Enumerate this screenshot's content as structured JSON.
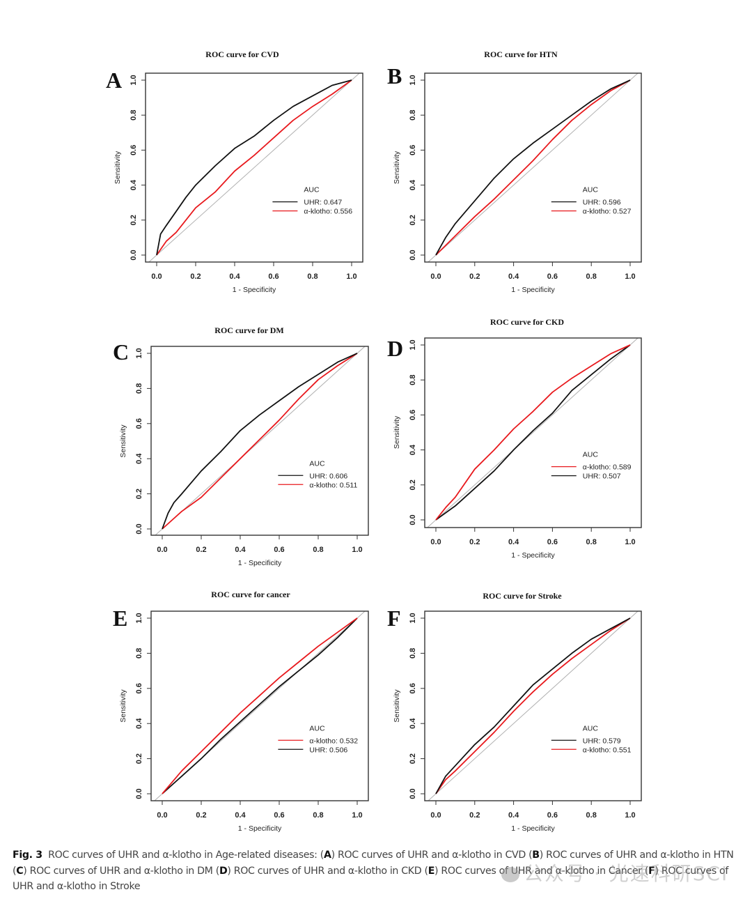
{
  "figure": {
    "caption": {
      "label": "Fig. 3",
      "text": "ROC curves of UHR and α-klotho in Age-related diseases:",
      "parts": [
        {
          "letter": "A",
          "text": "ROC curves of UHR and α-klotho in CVD"
        },
        {
          "letter": "B",
          "text": "ROC curves of UHR and α-klotho in HTN"
        },
        {
          "letter": "C",
          "text": "ROC curves of UHR and α-klotho in DM"
        },
        {
          "letter": "D",
          "text": "ROC curves of UHR and α-klotho in CKD"
        },
        {
          "letter": "E",
          "text": "ROC curves of UHR and α-klotho in Cancer"
        },
        {
          "letter": "F",
          "text": "ROC curves of UHR and α-klotho in Stroke"
        }
      ]
    },
    "watermark": "公众号 · 光速科研SCI"
  },
  "colors": {
    "uhr": "#111111",
    "klotho": "#e8191d",
    "diagonal": "#b0b0b0",
    "frame": "#333333"
  },
  "chart_data": [
    {
      "panel": "A",
      "type": "line",
      "title": "ROC curve for CVD",
      "xlabel": "1 - Specificity",
      "ylabel": "Sensitivity",
      "xlim": [
        0,
        1
      ],
      "ylim": [
        0,
        1
      ],
      "xticks": [
        "0.0",
        "0.2",
        "0.4",
        "0.6",
        "0.8",
        "1.0"
      ],
      "yticks": [
        "0.0",
        "0.2",
        "0.4",
        "0.6",
        "0.8",
        "1.0"
      ],
      "legend": {
        "title": "AUC",
        "position": "bottom-right"
      },
      "diagonal": true,
      "series": [
        {
          "name": "UHR",
          "label": "UHR: 0.647",
          "auc": 0.647,
          "color": "uhr",
          "x": [
            0,
            0.02,
            0.05,
            0.1,
            0.15,
            0.2,
            0.3,
            0.4,
            0.5,
            0.6,
            0.7,
            0.8,
            0.9,
            1.0
          ],
          "y": [
            0,
            0.12,
            0.17,
            0.25,
            0.33,
            0.4,
            0.51,
            0.61,
            0.68,
            0.77,
            0.85,
            0.91,
            0.97,
            1.0
          ]
        },
        {
          "name": "α-klotho",
          "label": "α-klotho: 0.556",
          "auc": 0.556,
          "color": "klotho",
          "x": [
            0,
            0.05,
            0.1,
            0.2,
            0.3,
            0.4,
            0.5,
            0.6,
            0.7,
            0.8,
            0.9,
            1.0
          ],
          "y": [
            0,
            0.08,
            0.13,
            0.27,
            0.36,
            0.48,
            0.57,
            0.67,
            0.77,
            0.85,
            0.92,
            1.0
          ]
        }
      ]
    },
    {
      "panel": "B",
      "type": "line",
      "title": "ROC curve for HTN",
      "xlabel": "1 - Specificity",
      "ylabel": "Sensitivity",
      "xlim": [
        0,
        1
      ],
      "ylim": [
        0,
        1
      ],
      "xticks": [
        "0.0",
        "0.2",
        "0.4",
        "0.6",
        "0.8",
        "1.0"
      ],
      "yticks": [
        "0.0",
        "0.2",
        "0.4",
        "0.6",
        "0.8",
        "1.0"
      ],
      "legend": {
        "title": "AUC",
        "position": "bottom-right"
      },
      "diagonal": true,
      "series": [
        {
          "name": "UHR",
          "label": "UHR: 0.596",
          "auc": 0.596,
          "color": "uhr",
          "x": [
            0,
            0.05,
            0.1,
            0.2,
            0.3,
            0.4,
            0.5,
            0.6,
            0.7,
            0.8,
            0.9,
            1.0
          ],
          "y": [
            0,
            0.1,
            0.18,
            0.31,
            0.44,
            0.55,
            0.64,
            0.72,
            0.8,
            0.88,
            0.95,
            1.0
          ]
        },
        {
          "name": "α-klotho",
          "label": "α-klotho: 0.527",
          "auc": 0.527,
          "color": "klotho",
          "x": [
            0,
            0.1,
            0.2,
            0.3,
            0.4,
            0.5,
            0.6,
            0.7,
            0.8,
            0.9,
            1.0
          ],
          "y": [
            0,
            0.11,
            0.22,
            0.32,
            0.43,
            0.54,
            0.66,
            0.77,
            0.86,
            0.94,
            1.0
          ]
        }
      ]
    },
    {
      "panel": "C",
      "type": "line",
      "title": "ROC curve for DM",
      "xlabel": "1 - Specificity",
      "ylabel": "Sensitivity",
      "xlim": [
        0,
        1
      ],
      "ylim": [
        0,
        1
      ],
      "xticks": [
        "0.0",
        "0.2",
        "0.4",
        "0.6",
        "0.8",
        "1.0"
      ],
      "yticks": [
        "0.0",
        "0.2",
        "0.4",
        "0.6",
        "0.8",
        "1.0"
      ],
      "legend": {
        "title": "AUC",
        "position": "bottom-right"
      },
      "diagonal": true,
      "series": [
        {
          "name": "UHR",
          "label": "UHR: 0.606",
          "auc": 0.606,
          "color": "uhr",
          "x": [
            0,
            0.03,
            0.06,
            0.1,
            0.2,
            0.3,
            0.4,
            0.5,
            0.6,
            0.7,
            0.8,
            0.9,
            1.0
          ],
          "y": [
            0,
            0.09,
            0.15,
            0.2,
            0.33,
            0.44,
            0.56,
            0.65,
            0.73,
            0.81,
            0.88,
            0.95,
            1.0
          ]
        },
        {
          "name": "α-klotho",
          "label": "α-klotho: 0.511",
          "auc": 0.511,
          "color": "klotho",
          "x": [
            0,
            0.1,
            0.2,
            0.3,
            0.4,
            0.5,
            0.6,
            0.7,
            0.8,
            0.9,
            1.0
          ],
          "y": [
            0,
            0.1,
            0.18,
            0.29,
            0.4,
            0.51,
            0.62,
            0.74,
            0.85,
            0.93,
            1.0
          ]
        }
      ]
    },
    {
      "panel": "D",
      "type": "line",
      "title": "ROC curve for CKD",
      "xlabel": "1 - Specificity",
      "ylabel": "Sensitivity",
      "xlim": [
        0,
        1
      ],
      "ylim": [
        0,
        1
      ],
      "xticks": [
        "0.0",
        "0.2",
        "0.4",
        "0.6",
        "0.8",
        "1.0"
      ],
      "yticks": [
        "0.0",
        "0.2",
        "0.4",
        "0.6",
        "0.8",
        "1.0"
      ],
      "legend": {
        "title": "AUC",
        "position": "bottom-right"
      },
      "diagonal": true,
      "series": [
        {
          "name": "α-klotho",
          "label": "α-klotho: 0.589",
          "auc": 0.589,
          "color": "klotho",
          "x": [
            0,
            0.05,
            0.1,
            0.2,
            0.3,
            0.4,
            0.5,
            0.6,
            0.7,
            0.8,
            0.9,
            1.0
          ],
          "y": [
            0,
            0.07,
            0.13,
            0.29,
            0.4,
            0.52,
            0.62,
            0.73,
            0.81,
            0.88,
            0.95,
            1.0
          ]
        },
        {
          "name": "UHR",
          "label": "UHR: 0.507",
          "auc": 0.507,
          "color": "uhr",
          "x": [
            0,
            0.1,
            0.2,
            0.3,
            0.4,
            0.5,
            0.6,
            0.7,
            0.8,
            0.9,
            1.0
          ],
          "y": [
            0,
            0.08,
            0.18,
            0.28,
            0.4,
            0.51,
            0.61,
            0.74,
            0.83,
            0.92,
            1.0
          ]
        }
      ]
    },
    {
      "panel": "E",
      "type": "line",
      "title": "ROC curve for cancer",
      "xlabel": "1 - Specificity",
      "ylabel": "Sensitivity",
      "xlim": [
        0,
        1
      ],
      "ylim": [
        0,
        1
      ],
      "xticks": [
        "0.0",
        "0.2",
        "0.4",
        "0.6",
        "0.8",
        "1.0"
      ],
      "yticks": [
        "0.0",
        "0.2",
        "0.4",
        "0.6",
        "0.8",
        "1.0"
      ],
      "legend": {
        "title": "AUC",
        "position": "bottom-right"
      },
      "diagonal": true,
      "series": [
        {
          "name": "α-klotho",
          "label": "α-klotho: 0.532",
          "auc": 0.532,
          "color": "klotho",
          "x": [
            0,
            0.1,
            0.2,
            0.3,
            0.4,
            0.5,
            0.6,
            0.7,
            0.8,
            0.9,
            1.0
          ],
          "y": [
            0,
            0.13,
            0.24,
            0.35,
            0.46,
            0.56,
            0.66,
            0.75,
            0.84,
            0.92,
            1.0
          ]
        },
        {
          "name": "UHR",
          "label": "UHR: 0.506",
          "auc": 0.506,
          "color": "uhr",
          "x": [
            0,
            0.1,
            0.2,
            0.3,
            0.4,
            0.5,
            0.6,
            0.7,
            0.8,
            0.9,
            1.0
          ],
          "y": [
            0,
            0.1,
            0.2,
            0.31,
            0.41,
            0.51,
            0.61,
            0.7,
            0.79,
            0.89,
            1.0
          ]
        }
      ]
    },
    {
      "panel": "F",
      "type": "line",
      "title": "ROC curve for Stroke",
      "xlabel": "1 - Specificity",
      "ylabel": "Sensitivity",
      "xlim": [
        0,
        1
      ],
      "ylim": [
        0,
        1
      ],
      "xticks": [
        "0.0",
        "0.2",
        "0.4",
        "0.6",
        "0.8",
        "1.0"
      ],
      "yticks": [
        "0.0",
        "0.2",
        "0.4",
        "0.6",
        "0.8",
        "1.0"
      ],
      "legend": {
        "title": "AUC",
        "position": "bottom-right"
      },
      "diagonal": true,
      "series": [
        {
          "name": "UHR",
          "label": "UHR: 0.579",
          "auc": 0.579,
          "color": "uhr",
          "x": [
            0,
            0.05,
            0.1,
            0.2,
            0.3,
            0.4,
            0.5,
            0.6,
            0.7,
            0.8,
            0.9,
            1.0
          ],
          "y": [
            0,
            0.1,
            0.16,
            0.28,
            0.38,
            0.5,
            0.62,
            0.71,
            0.8,
            0.88,
            0.94,
            1.0
          ]
        },
        {
          "name": "α-klotho",
          "label": "α-klotho: 0.551",
          "auc": 0.551,
          "color": "klotho",
          "x": [
            0,
            0.05,
            0.1,
            0.2,
            0.3,
            0.4,
            0.5,
            0.6,
            0.7,
            0.8,
            0.9,
            1.0
          ],
          "y": [
            0,
            0.08,
            0.13,
            0.24,
            0.35,
            0.47,
            0.58,
            0.68,
            0.77,
            0.85,
            0.93,
            1.0
          ]
        }
      ]
    }
  ]
}
